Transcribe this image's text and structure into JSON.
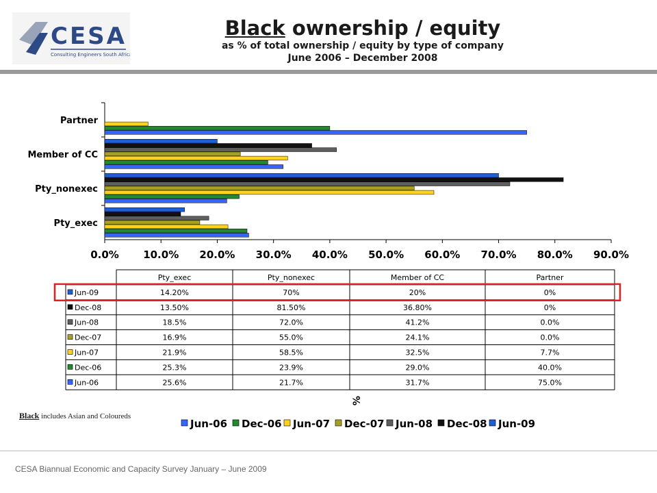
{
  "logo": {
    "text": "CESA",
    "tagline": "Consulting Engineers South Africa"
  },
  "title": {
    "underlined": "Black",
    "rest": " ownership / equity",
    "subtitle": "as % of total ownership / equity by type of company",
    "period": "June 2006 – December 2008"
  },
  "chart_data": {
    "type": "bar",
    "orientation": "horizontal",
    "categories": [
      "Pty_exec",
      "Pty_nonexec",
      "Member of CC",
      "Partner"
    ],
    "x_ticks": [
      "0.0%",
      "10.0%",
      "20.0%",
      "30.0%",
      "40.0%",
      "50.0%",
      "60.0%",
      "70.0%",
      "80.0%",
      "90.0%"
    ],
    "xlim": [
      0,
      90
    ],
    "xlabel": "%",
    "legend_position": "bottom",
    "series": [
      {
        "name": "Jun-06",
        "values": [
          25.6,
          21.7,
          31.7,
          75.0
        ],
        "labels": [
          "25.6%",
          "21.7%",
          "31.7%",
          "75.0%"
        ],
        "color": "#3366ff"
      },
      {
        "name": "Dec-06",
        "values": [
          25.3,
          23.9,
          29.0,
          40.0
        ],
        "labels": [
          "25.3%",
          "23.9%",
          "29.0%",
          "40.0%"
        ],
        "color": "#1f8a2e"
      },
      {
        "name": "Jun-07",
        "values": [
          21.9,
          58.5,
          32.5,
          7.7
        ],
        "labels": [
          "21.9%",
          "58.5%",
          "32.5%",
          "7.7%"
        ],
        "color": "#ffd21f"
      },
      {
        "name": "Dec-07",
        "values": [
          16.9,
          55.0,
          24.1,
          0.0
        ],
        "labels": [
          "16.9%",
          "55.0%",
          "24.1%",
          "0.0%"
        ],
        "color": "#a8a024"
      },
      {
        "name": "Jun-08",
        "values": [
          18.5,
          72.0,
          41.2,
          0.0
        ],
        "labels": [
          "18.5%",
          "72.0%",
          "41.2%",
          "0.0%"
        ],
        "color": "#5e5e5e"
      },
      {
        "name": "Dec-08",
        "values": [
          13.5,
          81.5,
          36.8,
          0
        ],
        "labels": [
          "13.50%",
          "81.50%",
          "36.80%",
          "0%"
        ],
        "color": "#111111"
      },
      {
        "name": "Jun-09",
        "values": [
          14.2,
          70,
          20,
          0
        ],
        "labels": [
          "14.20%",
          "70%",
          "20%",
          "0%"
        ],
        "color": "#1f5fd6"
      }
    ],
    "table_row_order": [
      "Jun-09",
      "Dec-08",
      "Jun-08",
      "Dec-07",
      "Jun-07",
      "Dec-06",
      "Jun-06"
    ],
    "highlighted_row": "Jun-09",
    "highlight_color": "#e02020"
  },
  "note": {
    "bold": "Black",
    "rest": " includes Asian and Coloureds"
  },
  "footer": "CESA Biannual Economic and Capacity Survey January – June 2009"
}
